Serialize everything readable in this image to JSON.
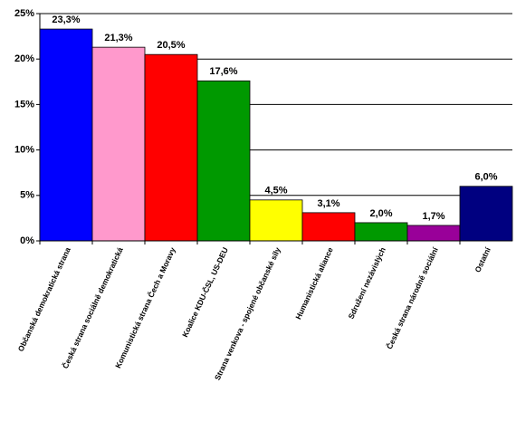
{
  "chart_data": {
    "type": "bar",
    "categories": [
      "Občanská demokratická strana",
      "Česká strana sociálně demokratická",
      "Komunistická strana Čech a Moravy",
      "Koalice KDU-ČSL, US-DEU",
      "Strana venkova - spojené občanské síly",
      "Humanistická aliance",
      "Sdružení nezávislých",
      "Česká strana národně sociální",
      "Ostatní"
    ],
    "values": [
      23.3,
      21.3,
      20.5,
      17.6,
      4.5,
      3.1,
      2.0,
      1.7,
      6.0
    ],
    "value_labels": [
      "23,3%",
      "21,3%",
      "20,5%",
      "17,6%",
      "4,5%",
      "3,1%",
      "2,0%",
      "1,7%",
      "6,0%"
    ],
    "colors": [
      "#0000ff",
      "#ff99cc",
      "#ff0000",
      "#009900",
      "#ffff00",
      "#ff0000",
      "#009900",
      "#990099",
      "#000080"
    ],
    "ylim": [
      0,
      25
    ],
    "yticks": [
      {
        "value": 0,
        "label": "0%"
      },
      {
        "value": 5,
        "label": "5%"
      },
      {
        "value": 10,
        "label": "10%"
      },
      {
        "value": 15,
        "label": "15%"
      },
      {
        "value": 20,
        "label": "20%"
      },
      {
        "value": 25,
        "label": "25%"
      }
    ],
    "grid": true
  }
}
